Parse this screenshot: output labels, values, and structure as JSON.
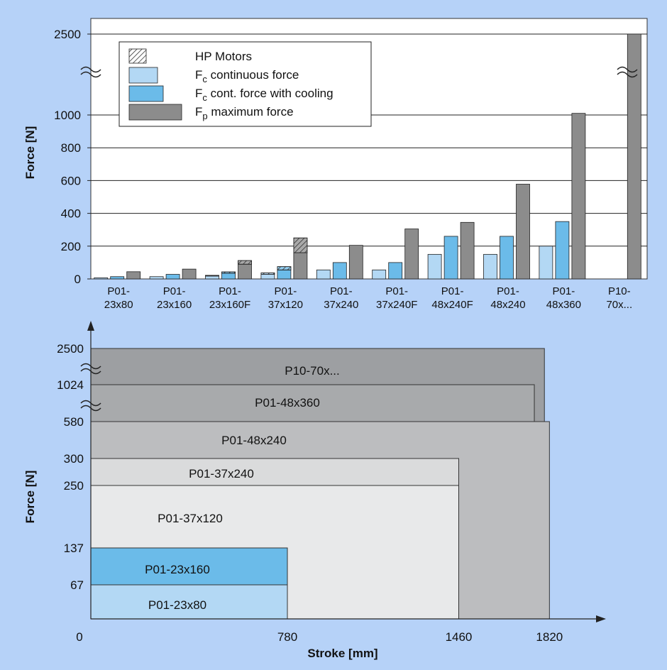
{
  "chart_data": [
    {
      "type": "bar",
      "ylabel": "Force [N]",
      "categories": [
        [
          "P01-",
          "23x80"
        ],
        [
          "P01-",
          "23x160"
        ],
        [
          "P01-",
          "23x160F"
        ],
        [
          "P01-",
          "37x120"
        ],
        [
          "P01-",
          "37x240"
        ],
        [
          "P01-",
          "37x240F"
        ],
        [
          "P01-",
          "48x240F"
        ],
        [
          "P01-",
          "48x240"
        ],
        [
          "P01-",
          "48x360"
        ],
        [
          "P10-",
          "70x..."
        ]
      ],
      "y_ticks": [
        "0",
        "200",
        "400",
        "600",
        "800",
        "1000",
        "2500"
      ],
      "y_break": {
        "from": 1100,
        "to": 2500
      },
      "series": [
        {
          "name": "F",
          "sub": "c",
          "suffix": " continuous force",
          "color": "#b3d8f4",
          "values": [
            7,
            14,
            18,
            28,
            55,
            55,
            150,
            150,
            200,
            null
          ],
          "hp_extra": [
            0,
            0,
            4,
            9,
            0,
            0,
            0,
            0,
            0,
            0
          ]
        },
        {
          "name": "F",
          "sub": "c",
          "suffix": " cont. force with cooling",
          "color": "#6bbbe9",
          "values": [
            14,
            28,
            35,
            55,
            100,
            100,
            260,
            260,
            350,
            null
          ],
          "hp_extra": [
            0,
            0,
            8,
            20,
            0,
            0,
            0,
            0,
            0,
            0
          ]
        },
        {
          "name": "F",
          "sub": "p",
          "suffix": " maximum force",
          "color": "#8c8c8c",
          "values": [
            44,
            60,
            90,
            160,
            205,
            305,
            345,
            578,
            1010,
            2500
          ],
          "hp_extra": [
            0,
            0,
            22,
            90,
            0,
            0,
            0,
            0,
            0,
            0
          ]
        }
      ],
      "legend": {
        "hp_label": "HP Motors",
        "placement": "top-left"
      }
    },
    {
      "type": "area",
      "xlabel": "Stroke [mm]",
      "ylabel": "Force [N]",
      "x_ticks": [
        "0",
        "780",
        "1460",
        "1820"
      ],
      "y_ticks": [
        "67",
        "137",
        "250",
        "300",
        "580",
        "1024",
        "2500"
      ],
      "regions": [
        {
          "label": "P10-70x...",
          "stroke": 1800,
          "force": 2500,
          "color": "#9d9fa2"
        },
        {
          "label": "P01-48x360",
          "stroke": 1760,
          "force": 1024,
          "color": "#a8aaac"
        },
        {
          "label": "P01-48x240",
          "stroke": 1820,
          "force": 580,
          "color": "#bcbdbf"
        },
        {
          "label": "P01-37x240",
          "stroke": 1460,
          "force": 300,
          "color": "#dadbdc"
        },
        {
          "label": "P01-37x120",
          "stroke": 1460,
          "force": 250,
          "color": "#e8e9ea"
        },
        {
          "label": "P01-23x160",
          "stroke": 780,
          "force": 137,
          "color": "#6bbbe9"
        },
        {
          "label": "P01-23x80",
          "stroke": 780,
          "force": 67,
          "color": "#b3d8f4"
        }
      ]
    }
  ]
}
